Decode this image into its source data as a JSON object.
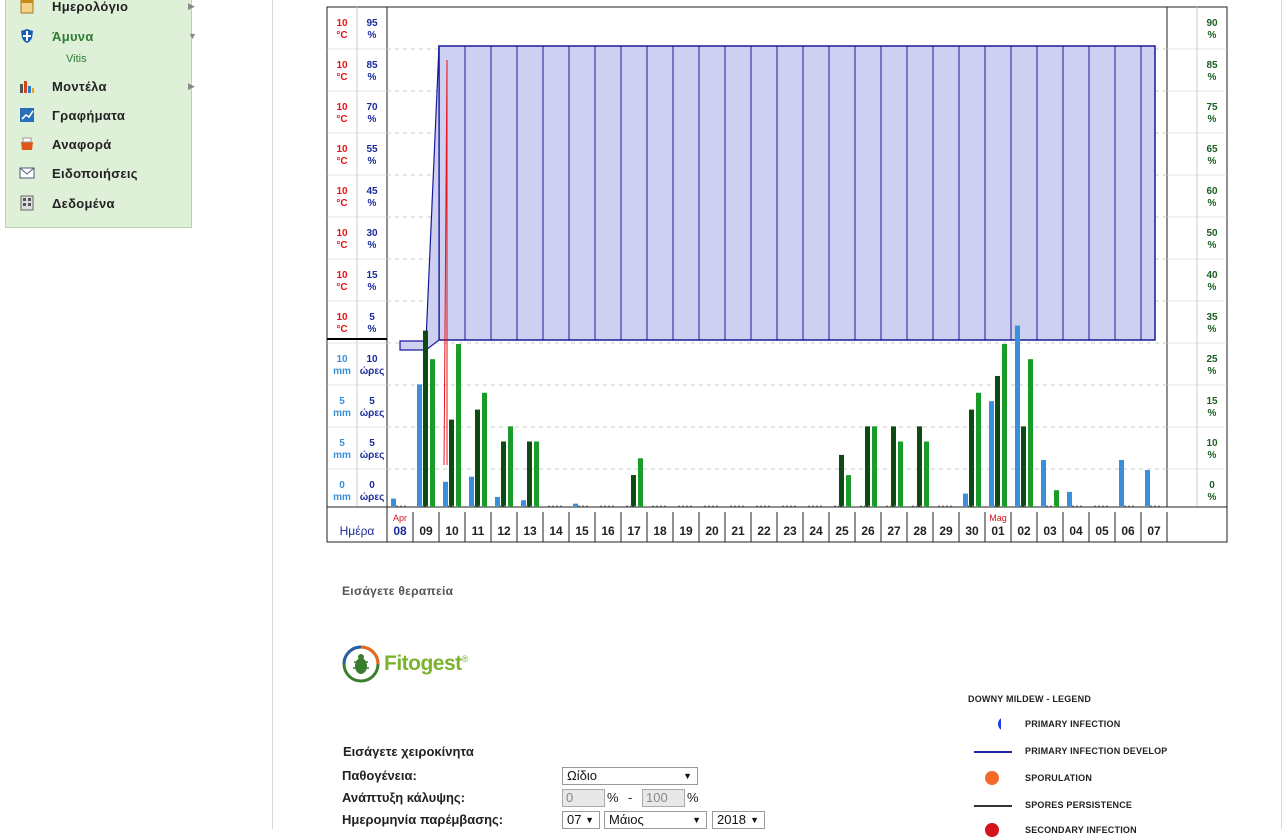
{
  "sidebar": {
    "items": [
      {
        "label": "Ημερολόγιο",
        "icon": "calendar-icon",
        "arrow": "▶",
        "active": false
      },
      {
        "label": "Άμυνα",
        "icon": "shield-icon",
        "arrow": "▼",
        "active": true
      },
      {
        "label": "Μοντέλα",
        "icon": "bar-chart-icon",
        "arrow": "▶",
        "active": false
      },
      {
        "label": "Γραφήματα",
        "icon": "line-chart-icon",
        "arrow": "",
        "active": false
      },
      {
        "label": "Αναφορά",
        "icon": "report-icon",
        "arrow": "",
        "active": false
      },
      {
        "label": "Ειδοποιήσεις",
        "icon": "envelope-icon",
        "arrow": "",
        "active": false
      },
      {
        "label": "Δεδομένα",
        "icon": "data-icon",
        "arrow": "",
        "active": false
      }
    ],
    "subitem": "Vitis"
  },
  "chart_data": {
    "type": "bar",
    "left_temp_labels": [
      "10",
      "10",
      "10",
      "10",
      "10",
      "10",
      "10",
      "10"
    ],
    "left_temp_unit": "°C",
    "left_hum_labels": [
      "95",
      "85",
      "70",
      "55",
      "45",
      "30",
      "15",
      "5"
    ],
    "left_hum_unit": "%",
    "left_rain_labels": [
      "10",
      "5",
      "5",
      "0"
    ],
    "left_rain_unit": "mm",
    "left_hours_labels": [
      "10",
      "5",
      "5",
      "0"
    ],
    "left_hours_unit": "ώρες",
    "right_labels": [
      "90",
      "85",
      "75",
      "65",
      "60",
      "50",
      "40",
      "35",
      "25",
      "15",
      "10",
      "0"
    ],
    "right_unit": "%",
    "day_axis_title": "Ημέρα",
    "days": [
      "08",
      "09",
      "10",
      "11",
      "12",
      "13",
      "14",
      "15",
      "16",
      "17",
      "18",
      "19",
      "20",
      "21",
      "22",
      "23",
      "24",
      "25",
      "26",
      "27",
      "28",
      "29",
      "30",
      "01",
      "02",
      "03",
      "04",
      "05",
      "06",
      "07"
    ],
    "month_labels": [
      {
        "day_index": 0,
        "label": "Apr"
      },
      {
        "day_index": 23,
        "label": "Mag"
      }
    ],
    "rain_mm": [
      0.5,
      7.3,
      1.5,
      1.8,
      0.6,
      0.4,
      0,
      0.2,
      0,
      0,
      0,
      0,
      0,
      0,
      0,
      0,
      0,
      0,
      0,
      0,
      0,
      0,
      0.8,
      6.3,
      10.8,
      2.8,
      0.9,
      0,
      2.8,
      2.2
    ],
    "hours_dark": [
      0,
      10.5,
      5.2,
      5.8,
      3.9,
      3.9,
      0,
      0,
      0,
      1.9,
      0,
      0,
      0,
      0,
      0,
      0,
      0,
      3.1,
      4.8,
      4.8,
      4.8,
      0,
      5.8,
      7.8,
      4.8,
      0,
      0,
      0,
      0,
      0
    ],
    "hours_green": [
      0,
      8.8,
      9.7,
      6.8,
      4.8,
      3.9,
      0,
      0,
      0,
      2.9,
      0,
      0,
      0,
      0,
      0,
      0,
      0,
      1.9,
      4.8,
      3.9,
      3.9,
      0,
      6.8,
      9.7,
      8.8,
      1.0,
      0,
      0,
      0,
      0
    ],
    "infection_band": {
      "top_percent": 95,
      "bottom_percent": 5,
      "start_day_index": 2,
      "end_day_index": 29
    },
    "colors": {
      "rain": "#3a8fdc",
      "dark_bar": "#0d4a14",
      "green_bar": "#1a9c2a",
      "band_fill": "#cdd0f0",
      "band_stroke": "#1a1a9a",
      "temp": "#e8121a",
      "hum": "#1a2a9a",
      "right": "#1b5e20"
    }
  },
  "treatment": {
    "title": "Εισάγετε θεραπεία"
  },
  "logo": {
    "text": "Fitogest",
    "mark": "®"
  },
  "legend": {
    "title": "DOWNY MILDEW - LEGEND",
    "items": [
      {
        "label": "PRIMARY INFECTION",
        "symbol": "dot",
        "color": "#1a3ee8"
      },
      {
        "label": "PRIMARY INFECTION DEVELOP",
        "symbol": "line",
        "color": "#1a2a9a"
      },
      {
        "label": "SPORULATION",
        "symbol": "dot",
        "color": "#f26a2a"
      },
      {
        "label": "SPORES PERSISTENCE",
        "symbol": "line",
        "color": "#333333"
      },
      {
        "label": "SECONDARY INFECTION",
        "symbol": "dot",
        "color": "#d4131a"
      }
    ]
  },
  "manual_form": {
    "title": "Εισάγετε χειροκίνητα",
    "pathogen_label": "Παθογένεια:",
    "pathogen_value": "Ωίδιο",
    "coverage_label": "Ανάπτυξη κάλυψης:",
    "coverage_from": "0",
    "coverage_to": "100",
    "coverage_sep": "-",
    "coverage_unit": "%",
    "date_label": "Ημερομηνία παρέμβασης:",
    "date_day": "07",
    "date_month": "Μάιος",
    "date_year": "2018"
  }
}
